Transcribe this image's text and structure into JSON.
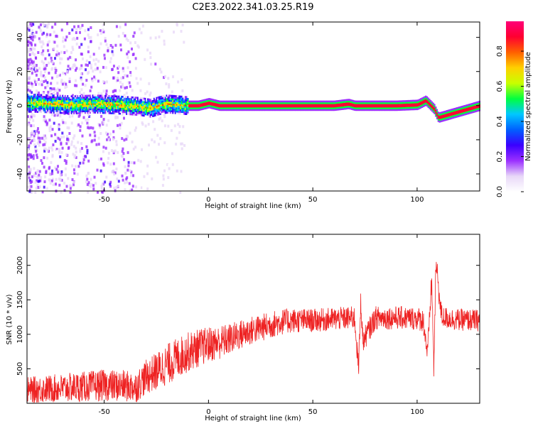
{
  "title": "C2E3.2022.341.03.25.R19",
  "chart_data": [
    {
      "type": "heatmap",
      "xlabel": "Height of straight line (km)",
      "ylabel": "Frequency (Hz)",
      "xlim": [
        -87,
        130
      ],
      "ylim": [
        -50,
        49
      ],
      "xticks": [
        -50,
        0,
        50,
        100
      ],
      "yticks": [
        -40,
        -20,
        0,
        20,
        40
      ],
      "trace": {
        "x": [
          -84,
          -75,
          -65,
          -55,
          -45,
          -38,
          -33,
          -28,
          -24,
          -20,
          -15,
          -10,
          -5,
          0,
          5,
          20,
          40,
          60,
          67,
          70,
          80,
          90,
          100,
          104,
          106,
          108,
          110,
          130
        ],
        "y": [
          1.5,
          1.0,
          0.5,
          1.0,
          0.5,
          0,
          -0.5,
          -1.5,
          0,
          1.0,
          0.5,
          0,
          0,
          1.5,
          0,
          0,
          0,
          0,
          1.0,
          0,
          0,
          0,
          0.5,
          3.0,
          0.5,
          -2.0,
          -7.0,
          0
        ]
      },
      "colorbar": {
        "label": "Normalized spectral amplitude",
        "ticks": [
          0.0,
          0.2,
          0.4,
          0.6,
          0.8
        ],
        "colors": [
          "#ffffff",
          "#e8d8f8",
          "#9b30ff",
          "#3a00ff",
          "#0060ff",
          "#00c8ff",
          "#00ff40",
          "#c8ff00",
          "#ffd000",
          "#ff6000",
          "#ff0030",
          "#ff0078"
        ]
      }
    },
    {
      "type": "line",
      "xlabel": "Height of straight line (km)",
      "ylabel": "SNR (10 * v/v)",
      "xlim": [
        -87,
        130
      ],
      "ylim": [
        0,
        2450
      ],
      "xticks": [
        -50,
        0,
        50,
        100
      ],
      "yticks": [
        500,
        1000,
        1500,
        2000
      ],
      "series": [
        {
          "color": "#ee2222",
          "x": [
            -87,
            -70,
            -50,
            -40,
            -35,
            -30,
            -25,
            -20,
            -15,
            -10,
            -5,
            0,
            5,
            10,
            15,
            20,
            25,
            30,
            35,
            40,
            50,
            60,
            70,
            72,
            73,
            74,
            80,
            90,
            100,
            103,
            105,
            107,
            108,
            109,
            110,
            111,
            112,
            115,
            120,
            130
          ],
          "values": [
            190,
            220,
            260,
            250,
            230,
            380,
            460,
            560,
            650,
            740,
            800,
            850,
            880,
            930,
            990,
            1050,
            1090,
            1140,
            1180,
            1200,
            1200,
            1220,
            1240,
            500,
            1500,
            900,
            1240,
            1240,
            1230,
            1200,
            700,
            1800,
            500,
            2000,
            1800,
            1400,
            1250,
            1230,
            1210,
            1200
          ],
          "noise": [
            190,
            210,
            230,
            230,
            230,
            250,
            280,
            300,
            300,
            290,
            280,
            260,
            250,
            230,
            220,
            210,
            200,
            200,
            190,
            180,
            170,
            170,
            170,
            170,
            170,
            170,
            170,
            170,
            170,
            170,
            170,
            170,
            170,
            170,
            170,
            170,
            160,
            160,
            160,
            160
          ]
        }
      ]
    }
  ]
}
